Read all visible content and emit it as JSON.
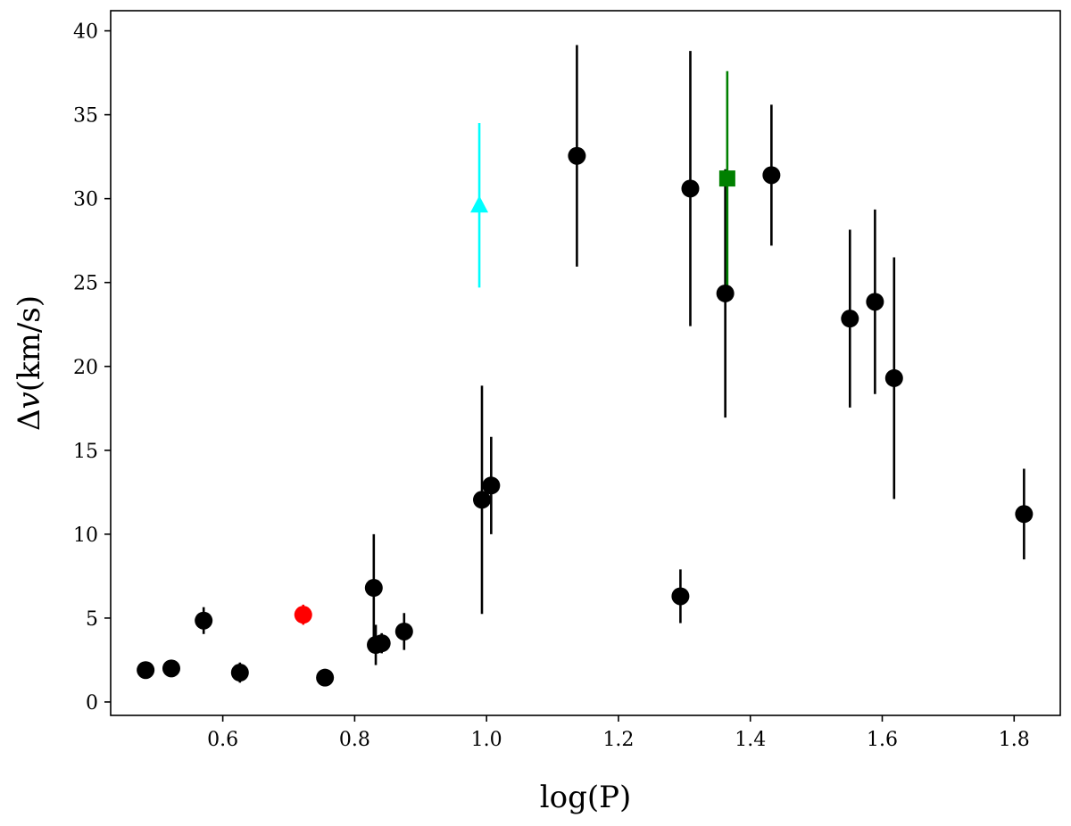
{
  "chart_data": {
    "type": "scatter",
    "title": "",
    "xlabel": "log(P)",
    "ylabel_prefix": "Δ",
    "ylabel_var": "v",
    "ylabel_unit": "(km/s)",
    "xlim": [
      0.43,
      1.87
    ],
    "ylim": [
      -0.8,
      41.2
    ],
    "xticks": [
      0.6,
      0.8,
      1.0,
      1.2,
      1.4,
      1.6,
      1.8
    ],
    "xtick_labels": [
      "0.6",
      "0.8",
      "1.0",
      "1.2",
      "1.4",
      "1.6",
      "1.8"
    ],
    "yticks": [
      0,
      5,
      10,
      15,
      20,
      25,
      30,
      35,
      40
    ],
    "ytick_labels": [
      "0",
      "5",
      "10",
      "15",
      "20",
      "25",
      "30",
      "35",
      "40"
    ],
    "grid": false,
    "series": [
      {
        "marker": "circle",
        "color": "#000000",
        "points": [
          {
            "x": 0.483,
            "y": 1.9,
            "err": 0.3
          },
          {
            "x": 0.522,
            "y": 2.0,
            "err": 0.3
          },
          {
            "x": 0.571,
            "y": 4.85,
            "err": 0.8
          },
          {
            "x": 0.626,
            "y": 1.75,
            "err": 0.6
          },
          {
            "x": 0.755,
            "y": 1.45,
            "err": 0.4
          },
          {
            "x": 0.829,
            "y": 6.8,
            "err": 3.2
          },
          {
            "x": 0.832,
            "y": 3.4,
            "err": 1.2
          },
          {
            "x": 0.841,
            "y": 3.5,
            "err": 0.6
          },
          {
            "x": 0.875,
            "y": 4.2,
            "err": 1.1
          },
          {
            "x": 0.993,
            "y": 12.05,
            "err": 6.8
          },
          {
            "x": 1.007,
            "y": 12.9,
            "err": 2.9
          },
          {
            "x": 1.137,
            "y": 32.55,
            "err": 6.6
          },
          {
            "x": 1.294,
            "y": 6.3,
            "err": 1.6
          },
          {
            "x": 1.309,
            "y": 30.6,
            "err": 8.2
          },
          {
            "x": 1.362,
            "y": 24.35,
            "err": 7.4
          },
          {
            "x": 1.432,
            "y": 31.4,
            "err": 4.2
          },
          {
            "x": 1.551,
            "y": 22.85,
            "err": 5.3
          },
          {
            "x": 1.589,
            "y": 23.85,
            "err": 5.5
          },
          {
            "x": 1.618,
            "y": 19.3,
            "err": 7.2
          },
          {
            "x": 1.815,
            "y": 11.2,
            "err": 2.7
          }
        ]
      },
      {
        "marker": "circle",
        "color": "#ff0000",
        "points": [
          {
            "x": 0.722,
            "y": 5.2,
            "err": 0.6
          }
        ]
      },
      {
        "marker": "triangle",
        "color": "#00ffff",
        "points": [
          {
            "x": 0.989,
            "y": 29.6,
            "err": 4.9
          }
        ]
      },
      {
        "marker": "square",
        "color": "#008000",
        "points": [
          {
            "x": 1.365,
            "y": 31.2,
            "err": 6.4
          }
        ]
      }
    ]
  }
}
